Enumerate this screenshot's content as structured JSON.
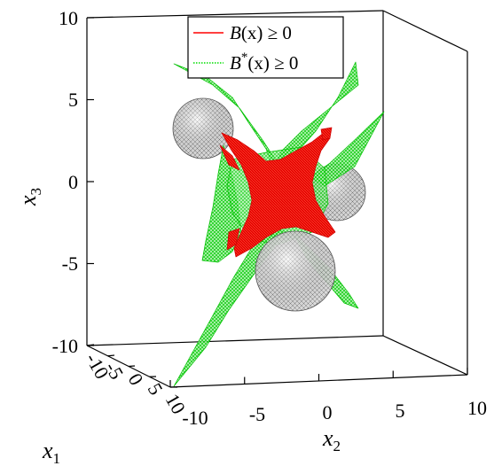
{
  "chart_data": {
    "type": "3d-surface",
    "title": "",
    "xlabel": "x",
    "xlabel_sub": "1",
    "ylabel": "x",
    "ylabel_sub": "2",
    "zlabel": "x",
    "zlabel_sub": "3",
    "xlim": [
      -10,
      10
    ],
    "ylim": [
      -10,
      10
    ],
    "zlim": [
      -10,
      10
    ],
    "x_ticks": [
      "-10",
      "-5",
      "0",
      "5",
      "10"
    ],
    "y_ticks": [
      "-10",
      "-5",
      "0",
      "5",
      "10"
    ],
    "z_ticks": [
      "10",
      "5",
      "0",
      "-5",
      "-10"
    ],
    "grid": false,
    "legend_position": "top-center",
    "series": [
      {
        "name": "B(x) ≥ 0",
        "name_prefix": "B",
        "name_suffix": "(x) ≥ 0",
        "color": "#ff0000",
        "style": "solid"
      },
      {
        "name": "B*(x) ≥ 0",
        "name_prefix": "B",
        "name_sup": "*",
        "name_suffix": "(x) ≥ 0",
        "color": "#00dd00",
        "style": "dotted"
      }
    ],
    "obstacles": [
      {
        "shape": "sphere",
        "color": "#555555"
      },
      {
        "shape": "sphere",
        "color": "#555555"
      },
      {
        "shape": "sphere",
        "color": "#555555"
      }
    ]
  }
}
